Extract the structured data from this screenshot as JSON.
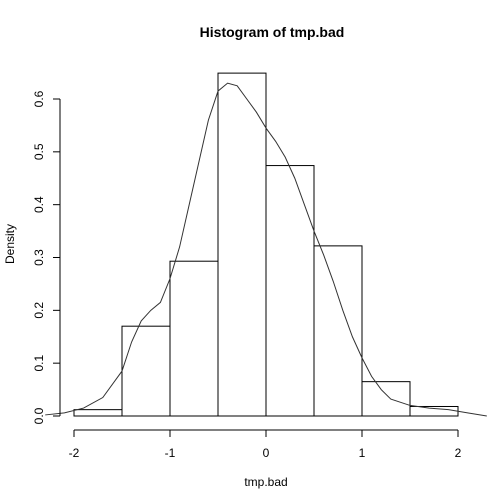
{
  "chart_data": {
    "type": "histogram",
    "title": "Histogram of tmp.bad",
    "xlabel": "tmp.bad",
    "ylabel": "Density",
    "xlim": [
      -2,
      2
    ],
    "ylim": [
      0,
      0.65
    ],
    "x_ticks": [
      -2,
      -1,
      0,
      1,
      2
    ],
    "y_ticks": [
      0.0,
      0.1,
      0.2,
      0.3,
      0.4,
      0.5,
      0.6
    ],
    "y_tick_labels": [
      "0.0",
      "0.1",
      "0.2",
      "0.3",
      "0.4",
      "0.5",
      "0.6"
    ],
    "bins": [
      {
        "x0": -2.0,
        "x1": -1.5,
        "density": 0.012
      },
      {
        "x0": -1.5,
        "x1": -1.0,
        "density": 0.17
      },
      {
        "x0": -1.0,
        "x1": -0.5,
        "density": 0.293
      },
      {
        "x0": -0.5,
        "x1": 0.0,
        "density": 0.649
      },
      {
        "x0": 0.0,
        "x1": 0.5,
        "density": 0.474
      },
      {
        "x0": 0.5,
        "x1": 1.0,
        "density": 0.322
      },
      {
        "x0": 1.0,
        "x1": 1.5,
        "density": 0.065
      },
      {
        "x0": 1.5,
        "x1": 2.0,
        "density": 0.018
      }
    ],
    "density_curve": {
      "x": [
        -2.3,
        -2.1,
        -1.9,
        -1.7,
        -1.5,
        -1.4,
        -1.3,
        -1.2,
        -1.1,
        -1.0,
        -0.9,
        -0.8,
        -0.7,
        -0.6,
        -0.5,
        -0.4,
        -0.3,
        -0.2,
        -0.1,
        0.0,
        0.1,
        0.2,
        0.3,
        0.4,
        0.5,
        0.6,
        0.7,
        0.8,
        0.9,
        1.0,
        1.1,
        1.2,
        1.3,
        1.5,
        1.7,
        1.9,
        2.1,
        2.3
      ],
      "y": [
        0.002,
        0.006,
        0.015,
        0.035,
        0.085,
        0.14,
        0.18,
        0.2,
        0.215,
        0.26,
        0.32,
        0.4,
        0.48,
        0.56,
        0.615,
        0.63,
        0.625,
        0.6,
        0.575,
        0.545,
        0.52,
        0.49,
        0.45,
        0.4,
        0.35,
        0.305,
        0.255,
        0.2,
        0.15,
        0.11,
        0.075,
        0.05,
        0.032,
        0.02,
        0.015,
        0.012,
        0.006,
        0.0
      ]
    }
  }
}
